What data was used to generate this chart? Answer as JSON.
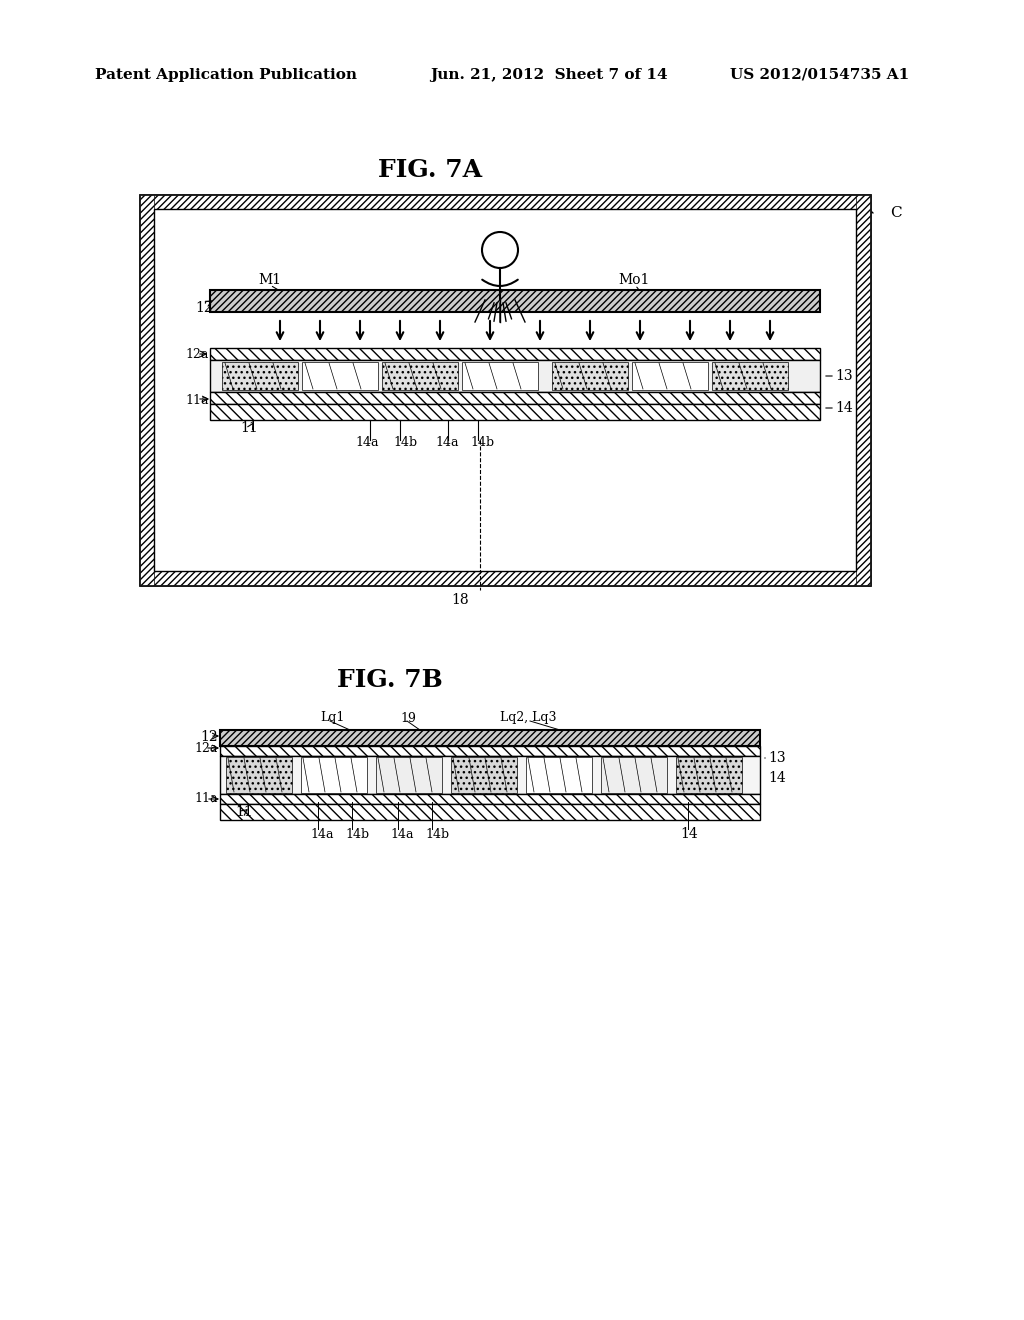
{
  "header_left": "Patent Application Publication",
  "header_mid": "Jun. 21, 2012  Sheet 7 of 14",
  "header_right": "US 2012/0154735 A1",
  "fig7a_title": "FIG. 7A",
  "fig7b_title": "FIG. 7B",
  "bg_color": "#ffffff",
  "line_color": "#000000",
  "hatch_color": "#555555",
  "label_C": "C",
  "label_M1": "M1",
  "label_Mo1": "Mo1",
  "label_12": "12",
  "label_12a": "12a",
  "label_13": "13",
  "label_11a": "11a",
  "label_11": "11",
  "label_14": "14",
  "label_14a1": "14a",
  "label_14b1": "14b",
  "label_14a2": "14a",
  "label_14b2": "14b",
  "label_18": "18",
  "label_Lq1": "Lq1",
  "label_19": "19",
  "label_Lq2Lq3": "Lq2, Lq3",
  "label_12_b": "12",
  "label_12a_b": "12a",
  "label_13_b": "13",
  "label_11a_b": "11a",
  "label_11_b": "11",
  "label_14_b": "14",
  "label_14a1_b": "14a",
  "label_14b1_b": "14b",
  "label_14a2_b": "14a",
  "label_14b2_b": "14b"
}
